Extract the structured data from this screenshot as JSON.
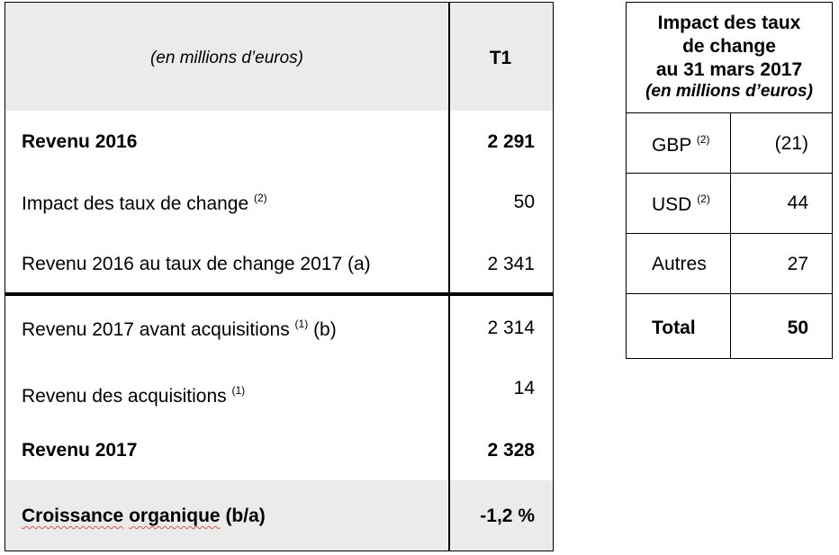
{
  "main_table": {
    "header": {
      "unit_label": "(en millions d’euros)",
      "column_label": "T1"
    },
    "rows": [
      {
        "label": "Revenu 2016",
        "note": "",
        "suffix": "",
        "value": "2 291"
      },
      {
        "label": "Impact des taux de change",
        "note": "(2)",
        "suffix": "",
        "value": "50"
      },
      {
        "label": "Revenu 2016 au taux de change 2017 (a)",
        "note": "",
        "suffix": "",
        "value": "2 341"
      },
      {
        "label": "Revenu 2017 avant acquisitions",
        "note": "(1)",
        "suffix": "(b)",
        "value": "2 314"
      },
      {
        "label": "Revenu des acquisitions",
        "note": "(1)",
        "suffix": "",
        "value": "14"
      },
      {
        "label": "Revenu 2017",
        "note": "",
        "suffix": "",
        "value": "2 328"
      },
      {
        "label_a": "Croissance",
        "label_b": "organique",
        "label_c": "(b/a)",
        "value": "-1,2 %"
      }
    ]
  },
  "fx_table": {
    "title_lines": [
      "Impact des taux",
      "de change",
      "au 31 mars 2017"
    ],
    "subtitle": "(en millions d’euros)",
    "rows": [
      {
        "label": "GBP",
        "note": "(2)",
        "value": "(21)"
      },
      {
        "label": "USD",
        "note": "(2)",
        "value": "44"
      },
      {
        "label": "Autres",
        "note": "",
        "value": "27"
      },
      {
        "label": "Total",
        "note": "",
        "value": "50"
      }
    ]
  }
}
